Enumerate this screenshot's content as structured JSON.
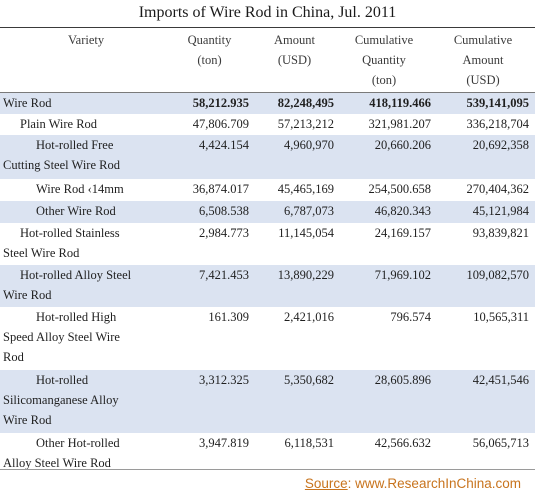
{
  "title": "Imports of Wire Rod in China, Jul. 2011",
  "headers": {
    "variety": "Variety",
    "quantity": [
      "Quantity",
      "(ton)"
    ],
    "amount": [
      "Amount",
      "(USD)"
    ],
    "cum_quantity": [
      "Cumulative",
      "Quantity",
      "(ton)"
    ],
    "cum_amount": [
      "Cumulative",
      "Amount",
      "(USD)"
    ]
  },
  "rows": [
    {
      "variety": [
        "Wire Rod"
      ],
      "quantity": "58,212.935",
      "amount": "82,248,495",
      "cum_quantity": "418,119.466",
      "cum_amount": "539,141,095"
    },
    {
      "variety": [
        "Plain Wire Rod"
      ],
      "quantity": "47,806.709",
      "amount": "57,213,212",
      "cum_quantity": "321,981.207",
      "cum_amount": "336,218,704"
    },
    {
      "variety": [
        "Hot-rolled Free",
        "Cutting Steel Wire Rod"
      ],
      "quantity": "4,424.154",
      "amount": "4,960,970",
      "cum_quantity": "20,660.206",
      "cum_amount": "20,692,358"
    },
    {
      "variety": [
        "Wire Rod ‹14mm"
      ],
      "quantity": "36,874.017",
      "amount": "45,465,169",
      "cum_quantity": "254,500.658",
      "cum_amount": "270,404,362"
    },
    {
      "variety": [
        "Other Wire Rod"
      ],
      "quantity": "6,508.538",
      "amount": "6,787,073",
      "cum_quantity": "46,820.343",
      "cum_amount": "45,121,984"
    },
    {
      "variety": [
        "Hot-rolled Stainless",
        "Steel Wire Rod"
      ],
      "quantity": "2,984.773",
      "amount": "11,145,054",
      "cum_quantity": "24,169.157",
      "cum_amount": "93,839,821"
    },
    {
      "variety": [
        "Hot-rolled Alloy Steel",
        "Wire Rod"
      ],
      "quantity": "7,421.453",
      "amount": "13,890,229",
      "cum_quantity": "71,969.102",
      "cum_amount": "109,082,570"
    },
    {
      "variety": [
        "Hot-rolled High",
        "Speed Alloy Steel Wire",
        "Rod"
      ],
      "quantity": "161.309",
      "amount": "2,421,016",
      "cum_quantity": "796.574",
      "cum_amount": "10,565,311"
    },
    {
      "variety": [
        "Hot-rolled",
        "Silicomanganese Alloy",
        "Wire Rod"
      ],
      "quantity": "3,312.325",
      "amount": "5,350,682",
      "cum_quantity": "28,605.896",
      "cum_amount": "42,451,546"
    },
    {
      "variety": [
        "Other Hot-rolled",
        "Alloy Steel Wire Rod"
      ],
      "quantity": "3,947.819",
      "amount": "6,118,531",
      "cum_quantity": "42,566.632",
      "cum_amount": "56,065,713"
    }
  ],
  "source": {
    "label": "Source",
    "text": ": www.ResearchInChina.com"
  },
  "colors": {
    "band": "#dbe3f1",
    "source": "#c8741e"
  }
}
